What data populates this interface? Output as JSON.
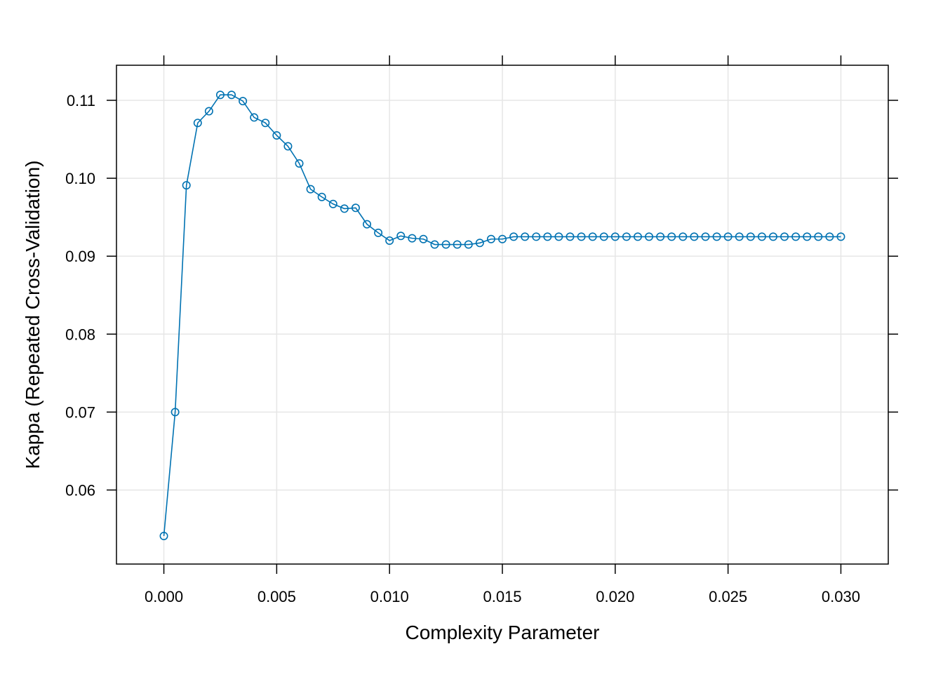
{
  "chart_data": {
    "type": "line",
    "xlabel": "Complexity Parameter",
    "ylabel": "Kappa (Repeated Cross-Validation)",
    "xlim": [
      -0.0021,
      0.0321
    ],
    "ylim": [
      0.0505,
      0.1145
    ],
    "x_ticks": [
      0.0,
      0.005,
      0.01,
      0.015,
      0.02,
      0.025,
      0.03
    ],
    "x_tick_labels": [
      "0.000",
      "0.005",
      "0.010",
      "0.015",
      "0.020",
      "0.025",
      "0.030"
    ],
    "y_ticks": [
      0.06,
      0.07,
      0.08,
      0.09,
      0.1,
      0.11
    ],
    "y_tick_labels": [
      "0.06",
      "0.07",
      "0.08",
      "0.09",
      "0.10",
      "0.11"
    ],
    "grid": true,
    "marker": "open-circle",
    "color": "#0072B2",
    "series": [
      {
        "x": [
          0.0,
          0.0005,
          0.001,
          0.0015,
          0.002,
          0.0025,
          0.003,
          0.0035,
          0.004,
          0.0045,
          0.005,
          0.0055,
          0.006,
          0.0065,
          0.007,
          0.0075,
          0.008,
          0.0085,
          0.009,
          0.0095,
          0.01,
          0.0105,
          0.011,
          0.0115,
          0.012,
          0.0125,
          0.013,
          0.0135,
          0.014,
          0.0145,
          0.015,
          0.0155,
          0.016,
          0.0165,
          0.017,
          0.0175,
          0.018,
          0.0185,
          0.019,
          0.0195,
          0.02,
          0.0205,
          0.021,
          0.0215,
          0.022,
          0.0225,
          0.023,
          0.0235,
          0.024,
          0.0245,
          0.025,
          0.0255,
          0.026,
          0.0265,
          0.027,
          0.0275,
          0.028,
          0.0285,
          0.029,
          0.0295,
          0.03
        ],
        "values": [
          0.0541,
          0.07,
          0.0991,
          0.1071,
          0.1086,
          0.1107,
          0.1107,
          0.1099,
          0.1078,
          0.1071,
          0.1055,
          0.1041,
          0.1019,
          0.0986,
          0.0976,
          0.0967,
          0.0961,
          0.0962,
          0.0941,
          0.093,
          0.092,
          0.0926,
          0.0923,
          0.0922,
          0.0915,
          0.0915,
          0.0915,
          0.0915,
          0.0917,
          0.0922,
          0.0922,
          0.0925,
          0.0925,
          0.0925,
          0.0925,
          0.0925,
          0.0925,
          0.0925,
          0.0925,
          0.0925,
          0.0925,
          0.0925,
          0.0925,
          0.0925,
          0.0925,
          0.0925,
          0.0925,
          0.0925,
          0.0925,
          0.0925,
          0.0925,
          0.0925,
          0.0925,
          0.0925,
          0.0925,
          0.0925,
          0.0925,
          0.0925,
          0.0925,
          0.0925,
          0.0925
        ]
      }
    ]
  }
}
